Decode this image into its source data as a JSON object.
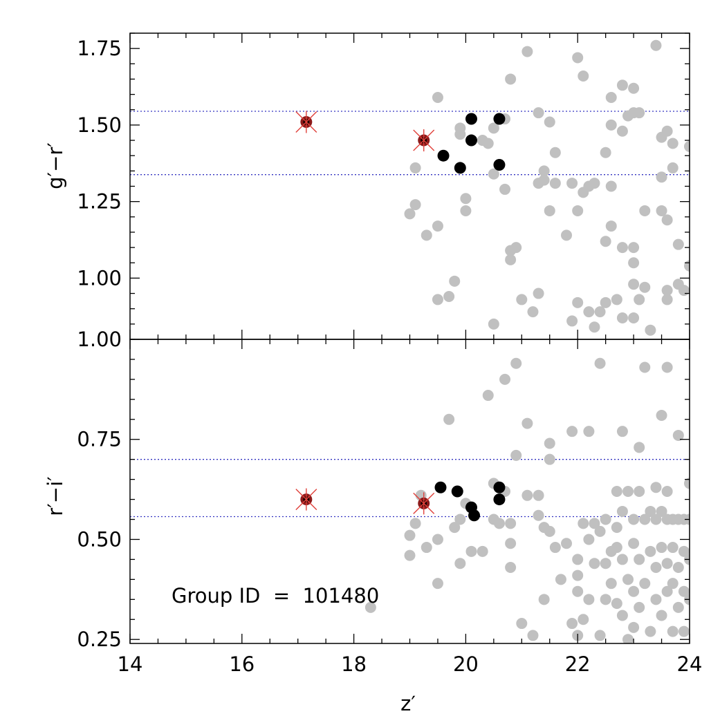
{
  "chart_data": [
    {
      "type": "scatter",
      "panel": "top",
      "ylabel": "g′−r′",
      "xlim": [
        14,
        24
      ],
      "ylim": [
        0.8,
        1.8
      ],
      "yticks": [
        "1.00",
        "1.25",
        "1.50",
        "1.75"
      ],
      "ytick_values": [
        1.0,
        1.25,
        1.5,
        1.75
      ],
      "xticks": [
        "14",
        "16",
        "18",
        "20",
        "22",
        "24"
      ],
      "xtick_values": [
        14,
        16,
        18,
        20,
        22,
        24
      ],
      "hlines": [
        1.545,
        1.338
      ],
      "colors": {
        "field": "#c0c0c0",
        "member": "#000000",
        "bcg_marker": "#e0403a",
        "bcg_center": "#8b1a1a",
        "hline": "#3030c0"
      },
      "series": [
        {
          "role": "field",
          "points": [
            [
              19.0,
              1.21
            ],
            [
              19.1,
              1.24
            ],
            [
              19.1,
              1.36
            ],
            [
              19.3,
              1.14
            ],
            [
              19.5,
              1.59
            ],
            [
              19.5,
              1.17
            ],
            [
              19.5,
              0.93
            ],
            [
              19.7,
              0.94
            ],
            [
              19.8,
              0.99
            ],
            [
              19.9,
              1.47
            ],
            [
              19.9,
              1.49
            ],
            [
              20.0,
              1.26
            ],
            [
              20.0,
              1.22
            ],
            [
              20.3,
              1.45
            ],
            [
              20.4,
              1.44
            ],
            [
              20.5,
              1.34
            ],
            [
              20.5,
              1.49
            ],
            [
              20.5,
              0.85
            ],
            [
              20.7,
              1.52
            ],
            [
              20.7,
              1.29
            ],
            [
              20.8,
              1.06
            ],
            [
              20.8,
              1.09
            ],
            [
              20.8,
              1.65
            ],
            [
              20.9,
              1.1
            ],
            [
              21.0,
              0.93
            ],
            [
              21.1,
              1.74
            ],
            [
              21.2,
              0.89
            ],
            [
              21.3,
              0.95
            ],
            [
              21.3,
              1.54
            ],
            [
              21.3,
              1.31
            ],
            [
              21.4,
              1.35
            ],
            [
              21.4,
              1.32
            ],
            [
              21.5,
              1.51
            ],
            [
              21.5,
              1.22
            ],
            [
              21.6,
              1.31
            ],
            [
              21.6,
              1.41
            ],
            [
              21.8,
              1.14
            ],
            [
              21.9,
              0.86
            ],
            [
              21.9,
              1.31
            ],
            [
              22.0,
              1.72
            ],
            [
              22.0,
              0.92
            ],
            [
              22.0,
              1.22
            ],
            [
              22.1,
              1.66
            ],
            [
              22.1,
              1.28
            ],
            [
              22.2,
              1.3
            ],
            [
              22.2,
              0.89
            ],
            [
              22.3,
              1.31
            ],
            [
              22.3,
              0.84
            ],
            [
              22.4,
              0.89
            ],
            [
              22.5,
              1.12
            ],
            [
              22.5,
              1.41
            ],
            [
              22.5,
              0.92
            ],
            [
              22.6,
              1.5
            ],
            [
              22.6,
              1.17
            ],
            [
              22.6,
              1.59
            ],
            [
              22.6,
              1.3
            ],
            [
              22.7,
              0.93
            ],
            [
              22.8,
              1.63
            ],
            [
              22.8,
              1.48
            ],
            [
              22.8,
              1.1
            ],
            [
              22.8,
              0.87
            ],
            [
              22.9,
              1.53
            ],
            [
              23.0,
              1.62
            ],
            [
              23.0,
              1.54
            ],
            [
              23.0,
              1.1
            ],
            [
              23.0,
              1.05
            ],
            [
              23.0,
              0.98
            ],
            [
              23.0,
              0.87
            ],
            [
              23.1,
              1.54
            ],
            [
              23.1,
              0.93
            ],
            [
              23.2,
              1.22
            ],
            [
              23.2,
              0.97
            ],
            [
              23.3,
              0.83
            ],
            [
              23.4,
              1.76
            ],
            [
              23.5,
              1.22
            ],
            [
              23.5,
              1.46
            ],
            [
              23.5,
              1.33
            ],
            [
              23.6,
              1.48
            ],
            [
              23.6,
              1.19
            ],
            [
              23.6,
              0.93
            ],
            [
              23.6,
              0.96
            ],
            [
              23.7,
              1.36
            ],
            [
              23.7,
              1.44
            ],
            [
              23.8,
              1.11
            ],
            [
              23.8,
              0.98
            ],
            [
              23.9,
              0.96
            ],
            [
              24.0,
              1.43
            ],
            [
              24.0,
              1.04
            ]
          ]
        },
        {
          "role": "member",
          "points": [
            [
              19.6,
              1.4
            ],
            [
              19.9,
              1.36
            ],
            [
              20.1,
              1.52
            ],
            [
              20.1,
              1.45
            ],
            [
              20.6,
              1.52
            ],
            [
              20.6,
              1.37
            ]
          ]
        },
        {
          "role": "bcg",
          "points": [
            [
              17.15,
              1.51
            ],
            [
              19.25,
              1.45
            ]
          ]
        }
      ]
    },
    {
      "type": "scatter",
      "panel": "bottom",
      "xlabel": "z′",
      "ylabel": "r′−i′",
      "xlim": [
        14,
        24
      ],
      "ylim": [
        0.24,
        1.0
      ],
      "yticks": [
        "0.25",
        "0.50",
        "0.75",
        "1.00"
      ],
      "ytick_values": [
        0.25,
        0.5,
        0.75,
        1.0
      ],
      "xticks": [
        "14",
        "16",
        "18",
        "20",
        "22",
        "24"
      ],
      "xtick_values": [
        14,
        16,
        18,
        20,
        22,
        24
      ],
      "hlines": [
        0.7,
        0.557
      ],
      "series": [
        {
          "role": "field",
          "points": [
            [
              18.3,
              0.33
            ],
            [
              19.0,
              0.46
            ],
            [
              19.0,
              0.51
            ],
            [
              19.1,
              0.54
            ],
            [
              19.2,
              0.61
            ],
            [
              19.3,
              0.48
            ],
            [
              19.5,
              0.39
            ],
            [
              19.5,
              0.5
            ],
            [
              19.7,
              0.8
            ],
            [
              19.8,
              0.53
            ],
            [
              19.9,
              0.44
            ],
            [
              19.9,
              0.55
            ],
            [
              20.0,
              0.59
            ],
            [
              20.1,
              0.47
            ],
            [
              20.3,
              0.47
            ],
            [
              20.4,
              0.86
            ],
            [
              20.5,
              0.55
            ],
            [
              20.5,
              0.64
            ],
            [
              20.6,
              0.54
            ],
            [
              20.7,
              0.62
            ],
            [
              20.7,
              0.9
            ],
            [
              20.8,
              0.43
            ],
            [
              20.8,
              0.49
            ],
            [
              20.8,
              0.54
            ],
            [
              20.9,
              0.71
            ],
            [
              20.9,
              0.94
            ],
            [
              21.0,
              0.29
            ],
            [
              21.1,
              0.61
            ],
            [
              21.1,
              0.79
            ],
            [
              21.2,
              0.26
            ],
            [
              21.3,
              0.61
            ],
            [
              21.3,
              0.56
            ],
            [
              21.4,
              0.35
            ],
            [
              21.4,
              0.53
            ],
            [
              21.5,
              0.52
            ],
            [
              21.5,
              0.74
            ],
            [
              21.5,
              0.7
            ],
            [
              21.6,
              0.48
            ],
            [
              21.7,
              0.4
            ],
            [
              21.8,
              0.49
            ],
            [
              21.9,
              0.29
            ],
            [
              21.9,
              0.77
            ],
            [
              22.0,
              0.45
            ],
            [
              22.0,
              0.41
            ],
            [
              22.0,
              0.37
            ],
            [
              22.0,
              0.26
            ],
            [
              22.1,
              0.54
            ],
            [
              22.1,
              0.3
            ],
            [
              22.2,
              0.77
            ],
            [
              22.2,
              0.5
            ],
            [
              22.2,
              0.35
            ],
            [
              22.3,
              0.54
            ],
            [
              22.3,
              0.44
            ],
            [
              22.4,
              0.94
            ],
            [
              22.4,
              0.52
            ],
            [
              22.4,
              0.26
            ],
            [
              22.5,
              0.55
            ],
            [
              22.5,
              0.35
            ],
            [
              22.5,
              0.44
            ],
            [
              22.6,
              0.47
            ],
            [
              22.6,
              0.39
            ],
            [
              22.7,
              0.62
            ],
            [
              22.7,
              0.53
            ],
            [
              22.7,
              0.48
            ],
            [
              22.7,
              0.34
            ],
            [
              22.8,
              0.77
            ],
            [
              22.8,
              0.57
            ],
            [
              22.8,
              0.45
            ],
            [
              22.8,
              0.31
            ],
            [
              22.9,
              0.62
            ],
            [
              22.9,
              0.4
            ],
            [
              22.9,
              0.25
            ],
            [
              23.0,
              0.55
            ],
            [
              23.0,
              0.49
            ],
            [
              23.0,
              0.37
            ],
            [
              23.0,
              0.28
            ],
            [
              23.1,
              0.73
            ],
            [
              23.1,
              0.62
            ],
            [
              23.1,
              0.45
            ],
            [
              23.1,
              0.33
            ],
            [
              23.2,
              0.93
            ],
            [
              23.2,
              0.55
            ],
            [
              23.2,
              0.39
            ],
            [
              23.3,
              0.57
            ],
            [
              23.3,
              0.47
            ],
            [
              23.3,
              0.27
            ],
            [
              23.4,
              0.63
            ],
            [
              23.4,
              0.55
            ],
            [
              23.4,
              0.43
            ],
            [
              23.4,
              0.35
            ],
            [
              23.5,
              0.81
            ],
            [
              23.5,
              0.57
            ],
            [
              23.5,
              0.48
            ],
            [
              23.5,
              0.31
            ],
            [
              23.6,
              0.93
            ],
            [
              23.6,
              0.62
            ],
            [
              23.6,
              0.55
            ],
            [
              23.6,
              0.44
            ],
            [
              23.6,
              0.37
            ],
            [
              23.7,
              0.55
            ],
            [
              23.7,
              0.48
            ],
            [
              23.7,
              0.39
            ],
            [
              23.7,
              0.27
            ],
            [
              23.8,
              0.76
            ],
            [
              23.8,
              0.55
            ],
            [
              23.8,
              0.43
            ],
            [
              23.8,
              0.33
            ],
            [
              23.9,
              0.55
            ],
            [
              23.9,
              0.47
            ],
            [
              23.9,
              0.37
            ],
            [
              23.9,
              0.27
            ],
            [
              24.0,
              0.64
            ],
            [
              24.0,
              0.55
            ],
            [
              24.0,
              0.45
            ],
            [
              24.0,
              0.35
            ]
          ]
        },
        {
          "role": "member",
          "points": [
            [
              19.55,
              0.63
            ],
            [
              19.85,
              0.62
            ],
            [
              20.1,
              0.58
            ],
            [
              20.15,
              0.56
            ],
            [
              20.6,
              0.63
            ],
            [
              20.6,
              0.6
            ]
          ]
        },
        {
          "role": "bcg",
          "points": [
            [
              17.15,
              0.6
            ],
            [
              19.25,
              0.59
            ]
          ]
        }
      ],
      "annotations": [
        "Group ID  =  101480"
      ]
    }
  ]
}
